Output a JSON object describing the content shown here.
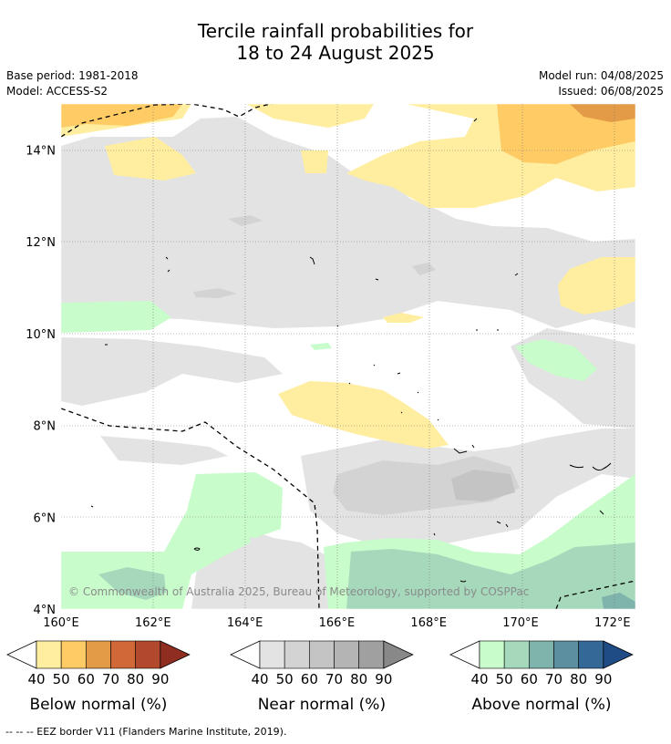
{
  "header": {
    "title_line1": "Tercile rainfall probabilities for",
    "title_line2": "18 to 24 August 2025",
    "base_period": "Base period: 1981-2018",
    "model": "Model: ACCESS-S2",
    "model_run": "Model run: 04/08/2025",
    "issued": "Issued: 06/08/2025"
  },
  "chart_data": {
    "type": "heatmap",
    "xlabel": "",
    "ylabel": "",
    "xlim": [
      160,
      172.5
    ],
    "ylim": [
      4,
      15
    ],
    "x_ticks": [
      "160°E",
      "162°E",
      "164°E",
      "166°E",
      "168°E",
      "170°E",
      "172°E"
    ],
    "y_ticks": [
      "4°N",
      "6°N",
      "8°N",
      "10°N",
      "12°N",
      "14°N"
    ],
    "grid": true,
    "copyright": "© Commonwealth of Australia 2025, Bureau of Meteorology, supported by COSPPac",
    "legends": [
      {
        "name": "Below normal (%)",
        "levels": [
          "40",
          "50",
          "60",
          "70",
          "80",
          "90"
        ],
        "colors": [
          "#ffeda0",
          "#fecb65",
          "#e39b48",
          "#d06838",
          "#b2492c",
          "#8f2d20"
        ]
      },
      {
        "name": "Near normal (%)",
        "levels": [
          "40",
          "50",
          "60",
          "70",
          "80",
          "90"
        ],
        "colors": [
          "#e3e3e3",
          "#d3d3d3",
          "#c4c4c4",
          "#b4b4b4",
          "#a0a0a0",
          "#888888"
        ]
      },
      {
        "name": "Above normal (%)",
        "levels": [
          "40",
          "50",
          "60",
          "70",
          "80",
          "90"
        ],
        "colors": [
          "#c8fccb",
          "#a6d9bc",
          "#7fb4ac",
          "#5c90a0",
          "#346897",
          "#1f4c85"
        ]
      }
    ],
    "eez_note": "-- -- -- EEZ border V11 (Flanders Marine Institute, 2019)."
  }
}
